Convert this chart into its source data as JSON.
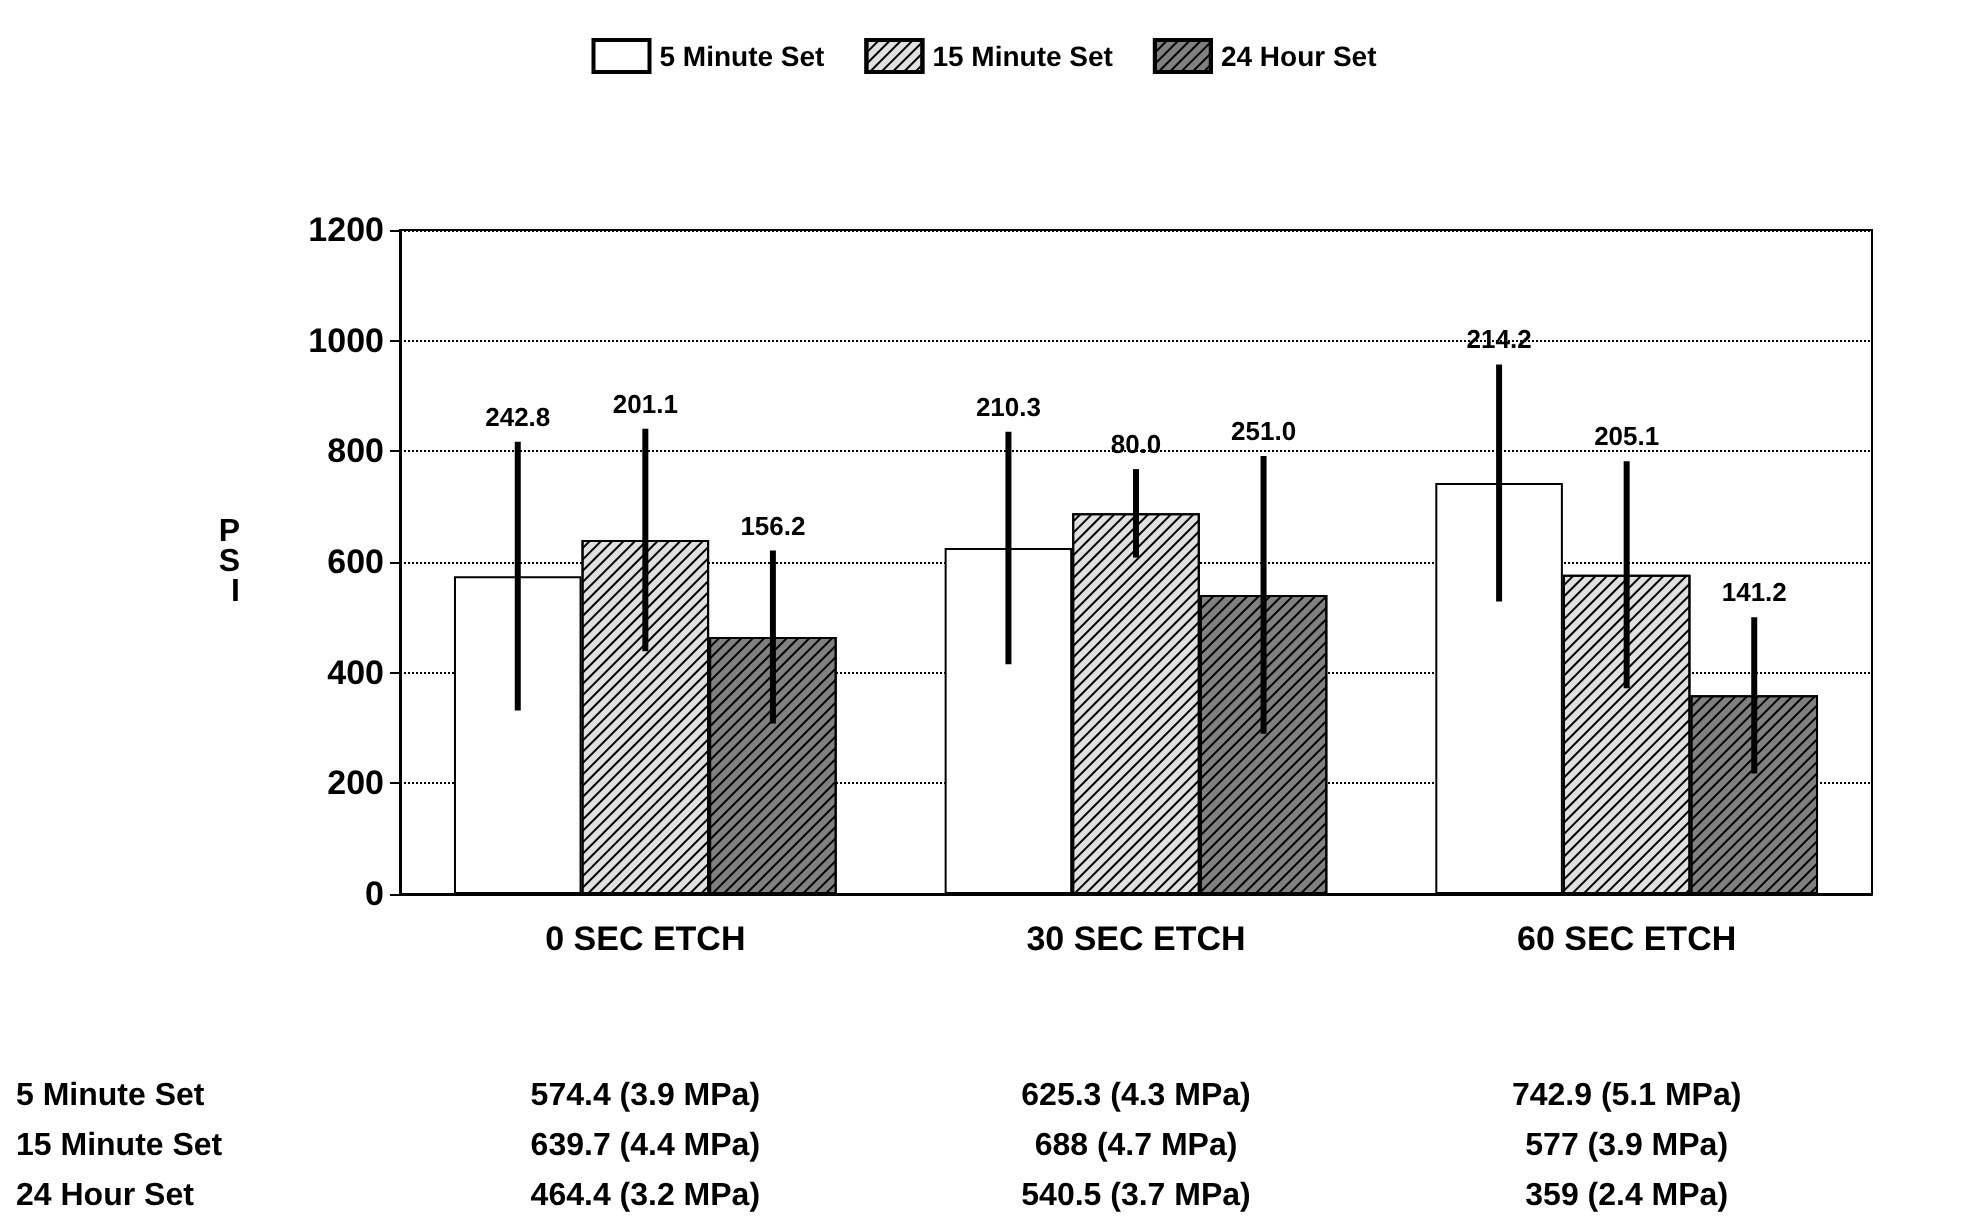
{
  "chart_data": {
    "type": "bar",
    "categories": [
      "0 SEC ETCH",
      "30 SEC ETCH",
      "60 SEC ETCH"
    ],
    "ylabel": "PSI",
    "ylim": [
      0,
      1200
    ],
    "yticks": [
      0,
      200,
      400,
      600,
      800,
      1000,
      1200
    ],
    "grid": "y",
    "legend": "top",
    "series": [
      {
        "name": "5 Minute Set",
        "color": "#ffffff",
        "values": [
          574.4,
          625.3,
          742.9
        ],
        "errors": [
          242.8,
          210.3,
          214.2
        ],
        "value_labels": [
          "574.4 (3.9 MPa)",
          "625.3 (4.3 MPa)",
          "742.9 (5.1 MPa)"
        ]
      },
      {
        "name": "15 Minute Set",
        "color": "#e0e0e0",
        "values": [
          639.7,
          688,
          577
        ],
        "errors": [
          201.1,
          80.0,
          205.1
        ],
        "value_labels": [
          "639.7 (4.4 MPa)",
          "688 (4.7 MPa)",
          "577 (3.9 MPa)"
        ]
      },
      {
        "name": "24 Hour Set",
        "color": "#808080",
        "values": [
          464.4,
          540.5,
          359
        ],
        "errors": [
          156.2,
          251.0,
          141.2
        ],
        "value_labels": [
          "464.4 (3.2 MPa)",
          "540.5 (3.7 MPa)",
          "359 (2.4 MPa)"
        ]
      }
    ],
    "annotations": [
      "242.8",
      "201.1",
      "156.2",
      "210.3",
      "80.0",
      "251.0",
      "214.2",
      "205.1",
      "141.2"
    ]
  }
}
